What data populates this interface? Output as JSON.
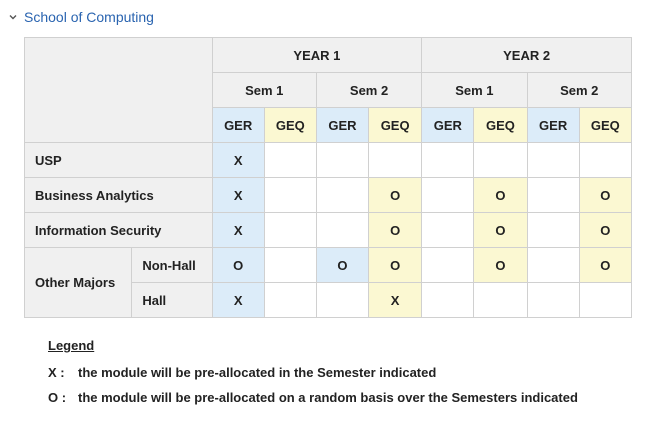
{
  "section": {
    "title": "School of Computing",
    "icon": "chevron-down-icon"
  },
  "table": {
    "years": [
      "YEAR 1",
      "YEAR 2"
    ],
    "semesters": [
      "Sem 1",
      "Sem 2",
      "Sem 1",
      "Sem 2"
    ],
    "subheads": [
      "GER",
      "GEQ",
      "GER",
      "GEQ",
      "GER",
      "GEQ",
      "GER",
      "GEQ"
    ],
    "rows": [
      {
        "label": "USP",
        "cells": [
          "X",
          "",
          "",
          "",
          "",
          "",
          "",
          ""
        ]
      },
      {
        "label": "Business Analytics",
        "cells": [
          "X",
          "",
          "",
          "O",
          "",
          "O",
          "",
          "O"
        ]
      },
      {
        "label": "Information Security",
        "cells": [
          "X",
          "",
          "",
          "O",
          "",
          "O",
          "",
          "O"
        ]
      },
      {
        "group": "Other Majors",
        "label": "Non-Hall",
        "cells": [
          "O",
          "",
          "O",
          "O",
          "",
          "O",
          "",
          "O"
        ]
      },
      {
        "label": "Hall",
        "cells": [
          "X",
          "",
          "",
          "X",
          "",
          "",
          "",
          ""
        ]
      }
    ],
    "colors": {
      "header_gray": "#f0f0f0",
      "ger_blue": "#dcecf9",
      "geq_yellow": "#fbf8d2",
      "border": "#d0d0d0"
    }
  },
  "legend": {
    "title": "Legend",
    "items": [
      {
        "symbol": "X :",
        "text": "the module will be pre-allocated in the Semester indicated"
      },
      {
        "symbol": "O :",
        "text": "the module will be pre-allocated on a random basis over the Semesters indicated"
      }
    ]
  }
}
